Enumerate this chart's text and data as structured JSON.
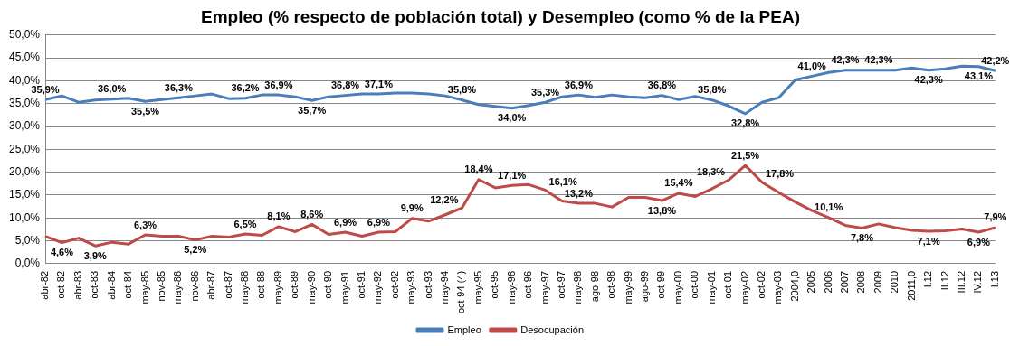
{
  "chart_data": {
    "type": "line",
    "title": "Empleo (% respecto de población total) y Desempleo (como % de la PEA)",
    "categories": [
      "abr-82",
      "oct-82",
      "abr-83",
      "oct-83",
      "abr-84",
      "oct-84",
      "may-85",
      "nov-85",
      "may-86",
      "nov-86",
      "abr-87",
      "oct-87",
      "may-88",
      "oct-88",
      "may-89",
      "oct-89",
      "may-90",
      "oct-90",
      "may-91",
      "oct-91",
      "may-92",
      "oct-92",
      "may-93",
      "oct-93",
      "may-94",
      "oct-94 (4)",
      "may-95",
      "oct-95",
      "may-96",
      "oct-96",
      "may-97",
      "oct-97",
      "may-98",
      "ago-98",
      "oct-98",
      "may-99",
      "ago-99",
      "oct-99",
      "may-00",
      "oct-00",
      "may-01",
      "oct-01",
      "may-02",
      "oct-02",
      "may-03",
      "2004,0",
      "2005",
      "2006",
      "2007",
      "2008",
      "2009",
      "2010",
      "2011,0",
      "I.12",
      "II.12",
      "III.12",
      "IV.12",
      "I.13"
    ],
    "series": [
      {
        "name": "Empleo",
        "color": "#4a7ebb",
        "values": [
          35.9,
          36.7,
          35.3,
          35.8,
          36.0,
          36.2,
          35.5,
          35.9,
          36.3,
          36.7,
          37.1,
          36.1,
          36.2,
          36.9,
          36.9,
          36.5,
          35.7,
          36.5,
          36.8,
          37.1,
          37.1,
          37.3,
          37.3,
          37.1,
          36.7,
          35.8,
          34.8,
          34.4,
          34.0,
          34.6,
          35.3,
          36.5,
          36.9,
          36.4,
          36.9,
          36.5,
          36.3,
          36.8,
          35.9,
          36.6,
          35.8,
          34.5,
          32.8,
          35.3,
          36.3,
          40.2,
          41.0,
          41.8,
          42.3,
          42.3,
          42.3,
          42.3,
          42.8,
          42.3,
          42.6,
          43.2,
          43.1,
          42.2
        ],
        "value_labels": [
          "35,9%",
          null,
          null,
          null,
          "36,0%",
          null,
          "35,5%",
          null,
          "36,3%",
          null,
          null,
          null,
          "36,2%",
          null,
          "36,9%",
          null,
          "35,7%",
          null,
          "36,8%",
          null,
          "37,1%",
          null,
          null,
          null,
          null,
          "35,8%",
          null,
          null,
          "34,0%",
          null,
          "35,3%",
          null,
          "36,9%",
          null,
          null,
          null,
          null,
          "36,8%",
          null,
          null,
          "35,8%",
          null,
          "32,8%",
          null,
          null,
          null,
          "41,0%",
          null,
          "42,3%",
          null,
          "42,3%",
          null,
          null,
          "42,3%",
          null,
          null,
          "43,1%",
          "42,2%"
        ]
      },
      {
        "name": "Desocupación",
        "color": "#be4b48",
        "values": [
          6.0,
          4.6,
          5.6,
          3.9,
          4.7,
          4.3,
          6.3,
          6.0,
          6.0,
          5.2,
          6.0,
          5.8,
          6.5,
          6.2,
          8.1,
          7.0,
          8.6,
          6.4,
          6.9,
          6.0,
          6.9,
          7.0,
          9.9,
          9.3,
          10.7,
          12.2,
          18.4,
          16.6,
          17.1,
          17.3,
          16.1,
          13.7,
          13.2,
          13.2,
          12.4,
          14.5,
          14.5,
          13.8,
          15.4,
          14.7,
          16.4,
          18.3,
          21.5,
          17.8,
          15.6,
          13.5,
          11.6,
          10.1,
          8.4,
          7.8,
          8.7,
          7.9,
          7.3,
          7.1,
          7.2,
          7.6,
          6.9,
          7.9
        ],
        "value_labels": [
          null,
          "4,6%",
          null,
          "3,9%",
          null,
          null,
          "6,3%",
          null,
          null,
          "5,2%",
          null,
          null,
          "6,5%",
          null,
          "8,1%",
          null,
          "8,6%",
          null,
          "6,9%",
          null,
          "6,9%",
          null,
          "9,9%",
          null,
          null,
          "12,2%",
          "18,4%",
          null,
          "17,1%",
          null,
          "16,1%",
          null,
          "13,2%",
          null,
          null,
          null,
          null,
          "13,8%",
          "15,4%",
          null,
          null,
          "18,3%",
          "21,5%",
          "17,8%",
          null,
          null,
          null,
          "10,1%",
          null,
          "7,8%",
          null,
          null,
          null,
          "7,1%",
          null,
          null,
          "6,9%",
          "7,9%"
        ]
      }
    ],
    "ylim": [
      0,
      50
    ],
    "yticks": [
      {
        "value": 0,
        "label": "0,0%"
      },
      {
        "value": 5,
        "label": "5,0%"
      },
      {
        "value": 10,
        "label": "10,0%"
      },
      {
        "value": 15,
        "label": "15,0%"
      },
      {
        "value": 20,
        "label": "20,0%"
      },
      {
        "value": 25,
        "label": "25,0%"
      },
      {
        "value": 30,
        "label": "30,0%"
      },
      {
        "value": 35,
        "label": "35,0%"
      },
      {
        "value": 40,
        "label": "40,0%"
      },
      {
        "value": 45,
        "label": "45,0%"
      },
      {
        "value": 50,
        "label": "50,0%"
      }
    ],
    "grid": "y",
    "legend": "bottom",
    "marker": "none",
    "line_style": "solid"
  }
}
